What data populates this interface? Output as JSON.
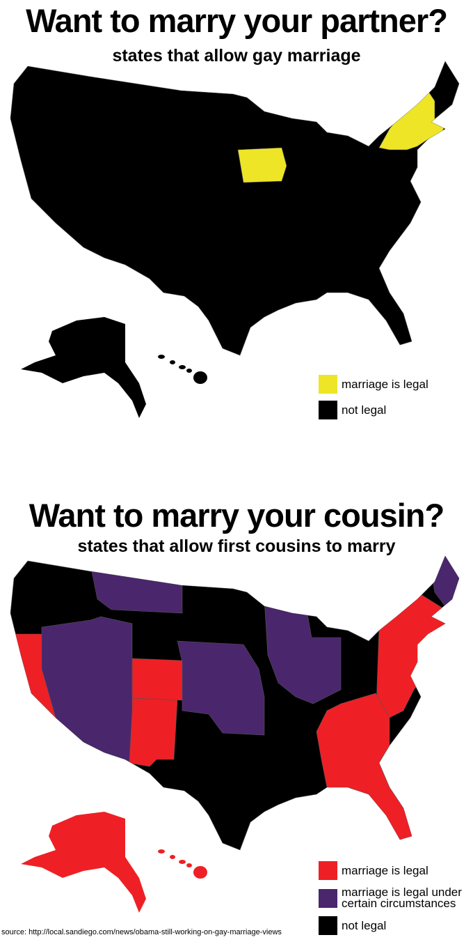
{
  "partner": {
    "title": "Want to marry your partner?",
    "subtitle": "states that allow gay marriage",
    "legend": [
      {
        "label": "marriage is legal",
        "color": "#ede526"
      },
      {
        "label": "not legal",
        "color": "#000000"
      }
    ],
    "states": {
      "legal": [
        "Iowa",
        "New York",
        "Vermont",
        "New Hampshire",
        "Massachusetts",
        "Connecticut"
      ],
      "default": "not legal"
    }
  },
  "cousin": {
    "title": "Want to marry your cousin?",
    "subtitle": "states that allow first cousins to marry",
    "legend": [
      {
        "label": "marriage is legal",
        "color": "#ee2025"
      },
      {
        "label": "marriage is legal under certain circumstances",
        "color": "#4a266c"
      },
      {
        "label": "not legal",
        "color": "#000000"
      }
    ],
    "states": {
      "legal": [
        "California",
        "Colorado",
        "New Mexico",
        "Alaska",
        "Hawaii",
        "New York",
        "Vermont",
        "Massachusetts",
        "Connecticut",
        "Rhode Island",
        "New Jersey",
        "Maryland",
        "Virginia",
        "North Carolina",
        "South Carolina",
        "Georgia",
        "Florida",
        "Tennessee",
        "Alabama"
      ],
      "certain_circumstances": [
        "Montana",
        "Nevada",
        "Utah",
        "Arizona",
        "Nebraska",
        "Kansas",
        "Oklahoma",
        "Wisconsin",
        "Illinois",
        "Indiana",
        "Maine"
      ],
      "default": "not legal"
    }
  },
  "source": "source: http://local.sandiego.com/news/obama-still-working-on-gay-marriage-views"
}
